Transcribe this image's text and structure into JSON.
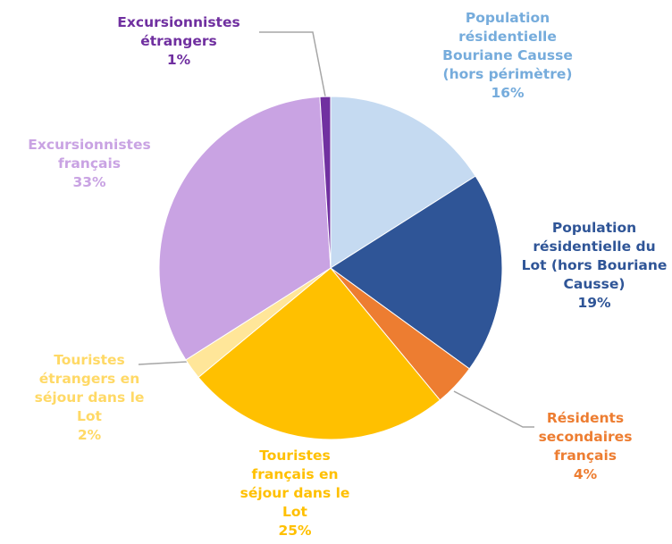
{
  "chart_data": {
    "type": "pie",
    "categories": [
      "Population résidentielle Bouriane Causse (hors périmètre)",
      "Population résidentielle du Lot (hors Bouriane Causse)",
      "Résidents secondaires français",
      "Touristes français en séjour dans le Lot",
      "Touristes étrangers en séjour dans le Lot",
      "Excursionnistes français",
      "Excursionnistes étrangers"
    ],
    "values": [
      16,
      19,
      4,
      25,
      2,
      33,
      1
    ],
    "value_labels": [
      "16%",
      "19%",
      "4%",
      "25%",
      "2%",
      "33%",
      "1%"
    ],
    "colors": [
      "#c5daf1",
      "#2f5597",
      "#ed7d31",
      "#ffc000",
      "#ffe699",
      "#c9a3e3",
      "#7030a0"
    ],
    "label_colors": [
      "#76acdc",
      "#2f5597",
      "#ed7d31",
      "#ffc000",
      "#ffd966",
      "#c9a3e3",
      "#7030a0"
    ]
  }
}
